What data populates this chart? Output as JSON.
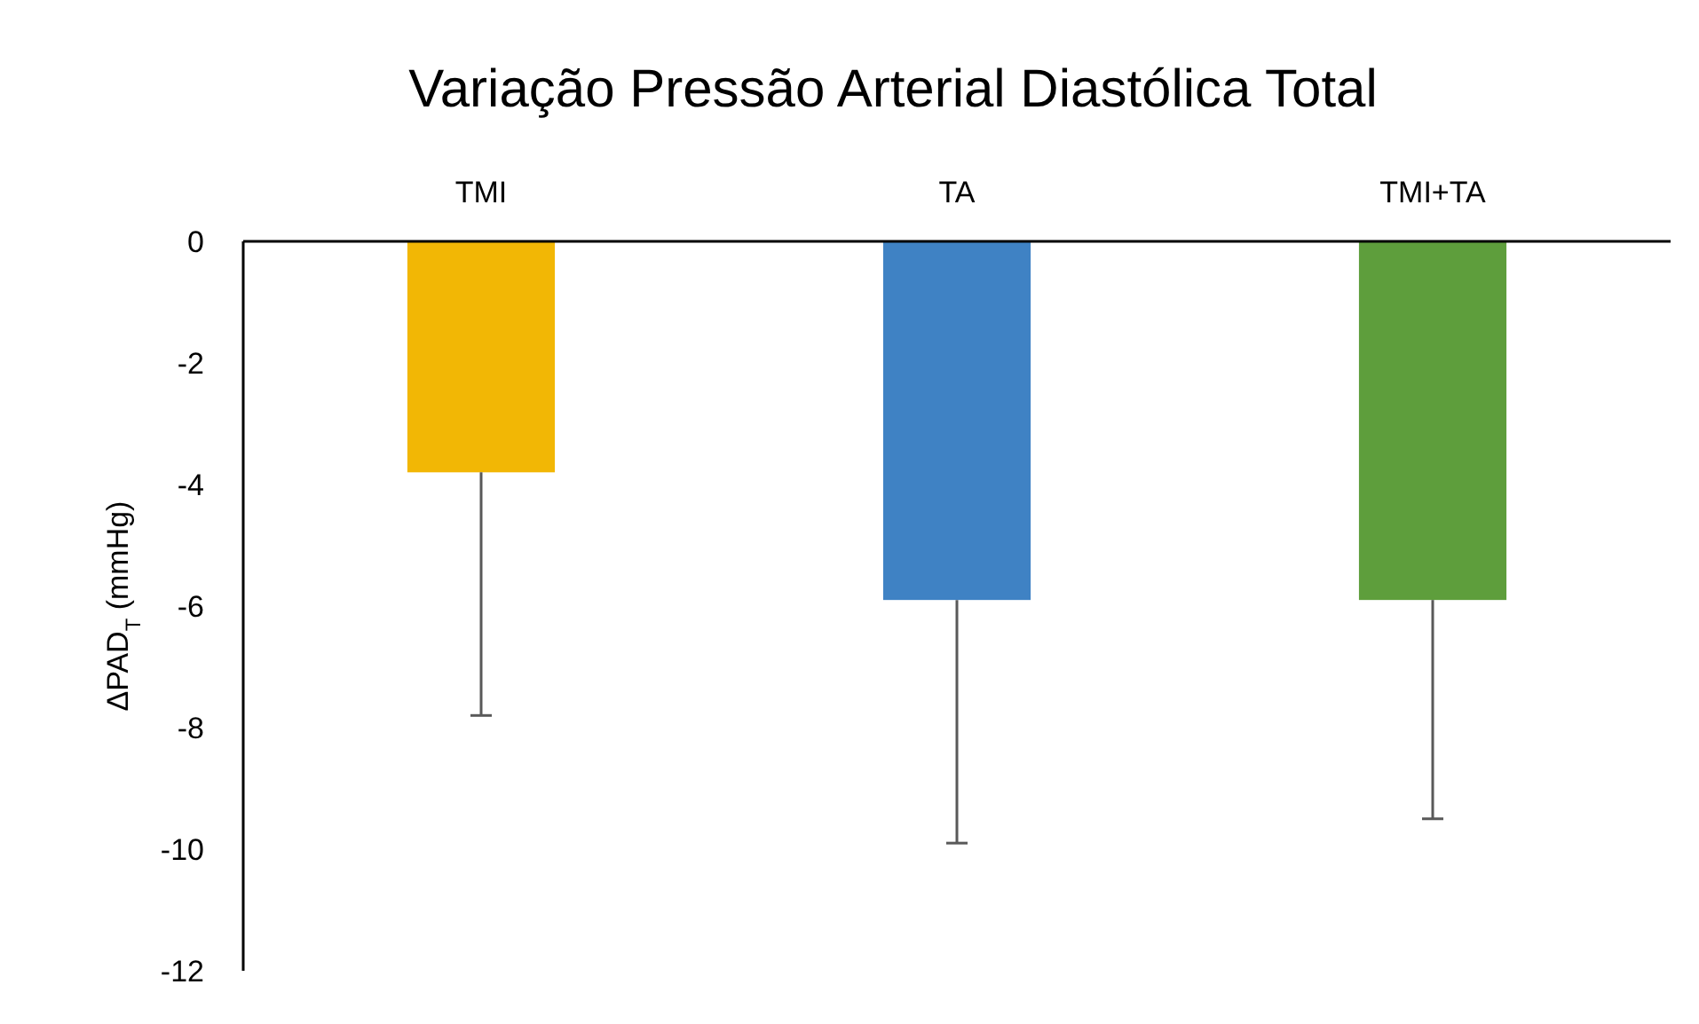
{
  "chart_data": {
    "type": "bar",
    "title": "Variação Pressão Arterial Diastólica Total",
    "ylabel": "ΔPAD$_{T}$ (mmHg)",
    "categories": [
      "TMI",
      "TA",
      "TMI+TA"
    ],
    "values": [
      -3.8,
      -5.9,
      -5.9
    ],
    "colors": [
      "#f2b705",
      "#3f82c4",
      "#5e9e3c"
    ],
    "errors": [
      [
        -7.8,
        -3.8
      ],
      [
        -9.9,
        -5.9
      ],
      [
        -9.5,
        -5.9
      ]
    ],
    "ylim": [
      -12,
      0
    ],
    "yticks": [
      -12,
      -10,
      -8,
      -6,
      -4,
      -2,
      0
    ],
    "grid": false
  }
}
